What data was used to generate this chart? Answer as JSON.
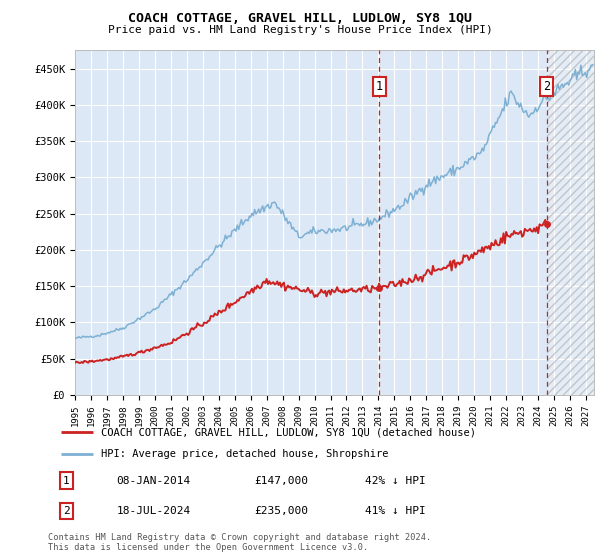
{
  "title": "COACH COTTAGE, GRAVEL HILL, LUDLOW, SY8 1QU",
  "subtitle": "Price paid vs. HM Land Registry's House Price Index (HPI)",
  "ylim": [
    0,
    475000
  ],
  "yticks": [
    0,
    50000,
    100000,
    150000,
    200000,
    250000,
    300000,
    350000,
    400000,
    450000
  ],
  "ytick_labels": [
    "£0",
    "£50K",
    "£100K",
    "£150K",
    "£200K",
    "£250K",
    "£300K",
    "£350K",
    "£400K",
    "£450K"
  ],
  "hpi_color": "#7eb0d4",
  "price_color": "#cc2222",
  "background_color": "#ffffff",
  "plot_bg_color": "#dce8f5",
  "grid_color": "#ffffff",
  "legend_label_price": "COACH COTTAGE, GRAVEL HILL, LUDLOW, SY8 1QU (detached house)",
  "legend_label_hpi": "HPI: Average price, detached house, Shropshire",
  "annotation1_label": "1",
  "annotation1_date": "08-JAN-2014",
  "annotation1_price": "£147,000",
  "annotation1_pct": "42% ↓ HPI",
  "annotation1_year": 2014.04,
  "annotation1_value": 147000,
  "annotation2_label": "2",
  "annotation2_date": "18-JUL-2024",
  "annotation2_price": "£235,000",
  "annotation2_pct": "41% ↓ HPI",
  "annotation2_year": 2024.54,
  "annotation2_value": 235000,
  "footnote1": "Contains HM Land Registry data © Crown copyright and database right 2024.",
  "footnote2": "This data is licensed under the Open Government Licence v3.0.",
  "xmin": 1995.0,
  "xmax": 2027.5,
  "hatch_start": 2024.54
}
